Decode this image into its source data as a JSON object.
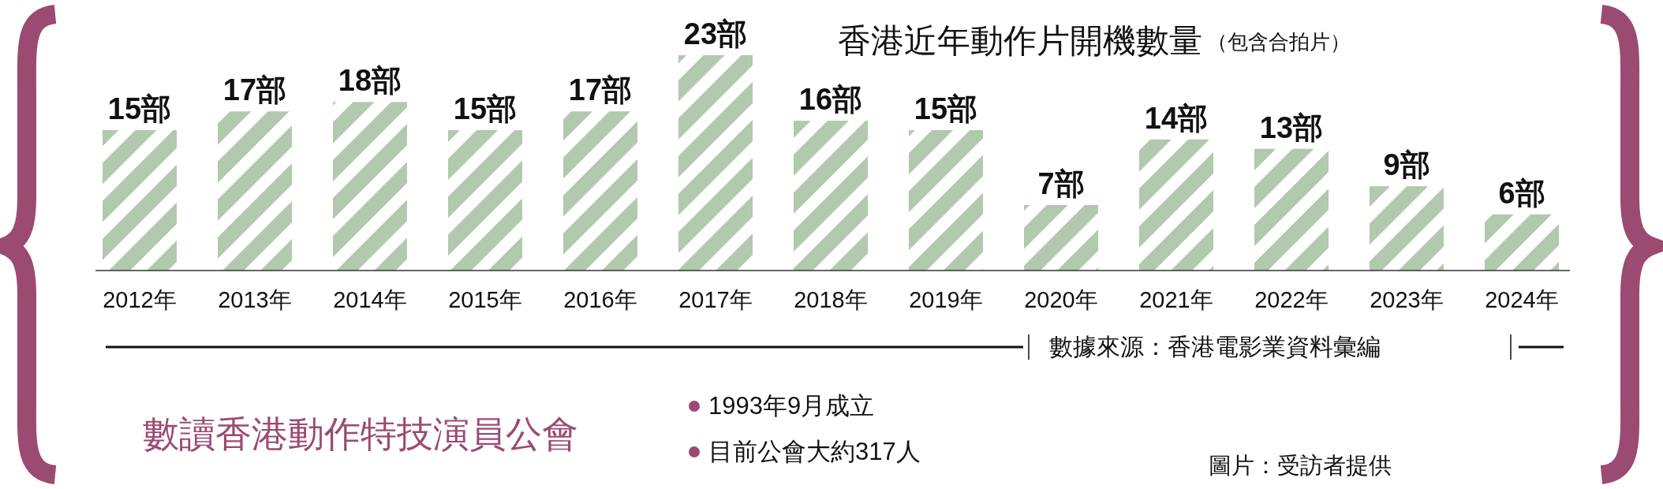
{
  "chart_data": {
    "type": "bar",
    "title": "香港近年動作片開機數量",
    "subtitle": "（包含合拍片）",
    "categories": [
      "2012年",
      "2013年",
      "2014年",
      "2015年",
      "2016年",
      "2017年",
      "2018年",
      "2019年",
      "2020年",
      "2021年",
      "2022年",
      "2023年",
      "2024年"
    ],
    "values": [
      15,
      17,
      18,
      15,
      17,
      23,
      16,
      15,
      7,
      14,
      13,
      9,
      6
    ],
    "value_labels": [
      "15部",
      "17部",
      "18部",
      "15部",
      "17部",
      "23部",
      "16部",
      "15部",
      "7部",
      "14部",
      "13部",
      "9部",
      "6部"
    ],
    "color": "#b1c9ad",
    "annotations": [
      "數據來源：香港電影業資料彙編",
      "數讀香港動作特技演員公會",
      "1993年9月成立",
      "目前公會大約317人",
      "圖片：受訪者提供"
    ]
  }
}
